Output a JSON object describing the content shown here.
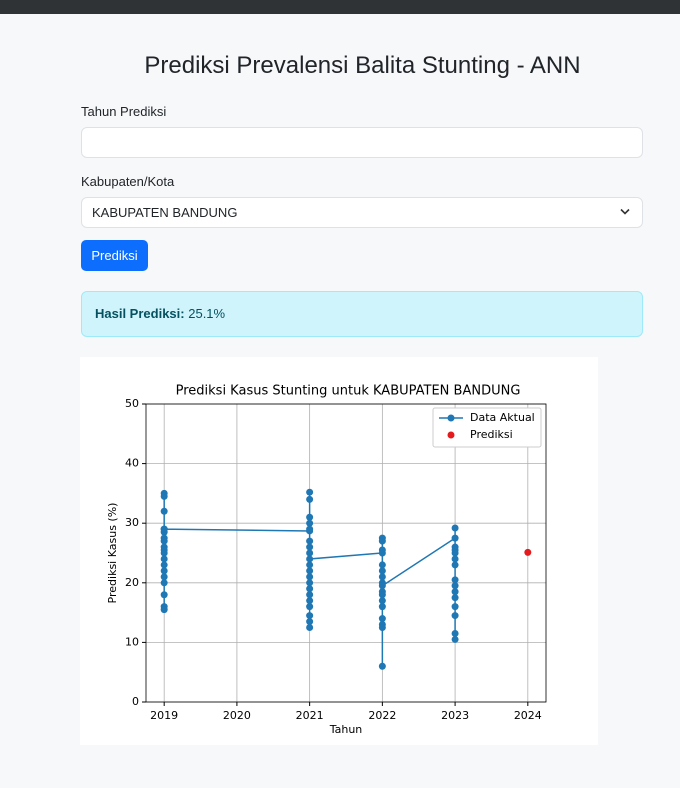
{
  "header": {
    "title": "Prediksi Prevalensi Balita Stunting - ANN"
  },
  "form": {
    "year_label": "Tahun Prediksi",
    "region_label": "Kabupaten/Kota",
    "region_value": "KABUPATEN BANDUNG",
    "button": "Prediksi"
  },
  "result": {
    "label": "Hasil Prediksi:",
    "value": "25.1%"
  },
  "chart_data": {
    "type": "line",
    "title": "Prediksi Kasus Stunting untuk KABUPATEN BANDUNG",
    "x_label": "Tahun",
    "y_label": "Prediksi Kasus (%)",
    "xlim": [
      2018.75,
      2024.25
    ],
    "xticks": [
      2019,
      2020,
      2021,
      2022,
      2023,
      2024
    ],
    "ylim": [
      0,
      50
    ],
    "yticks": [
      0,
      10,
      20,
      30,
      40,
      50
    ],
    "grid": true,
    "legend": "upper right",
    "series": [
      {
        "name": "Data Aktual",
        "type": "line",
        "color": "#1f77b4",
        "x": [
          2019,
          2019,
          2019,
          2019,
          2019,
          2019,
          2019,
          2019,
          2019,
          2019,
          2019,
          2019,
          2019,
          2019,
          2019,
          2019,
          2019,
          2019,
          2019,
          2021,
          2021,
          2021,
          2021,
          2021,
          2021,
          2021,
          2021,
          2021,
          2021,
          2021,
          2021,
          2021,
          2021,
          2021,
          2021,
          2021,
          2021,
          2021,
          2021,
          2021,
          2022,
          2022,
          2022,
          2022,
          2022,
          2022,
          2022,
          2022,
          2022,
          2022,
          2022,
          2022,
          2022,
          2022,
          2022,
          2022,
          2022,
          2023,
          2023,
          2023,
          2023,
          2023,
          2023,
          2023,
          2023,
          2023,
          2023,
          2023,
          2023,
          2023,
          2023,
          2023
        ],
        "values": [
          35,
          34.5,
          32,
          29,
          28.5,
          27.5,
          27,
          26,
          25.5,
          25,
          24,
          23,
          22,
          21,
          20,
          18,
          16,
          15.5,
          29,
          28.7,
          35.2,
          34,
          31,
          30,
          29,
          27,
          26,
          25,
          23,
          22,
          21,
          20,
          19,
          18,
          17,
          16,
          14.5,
          13.5,
          12.5,
          24,
          25,
          27.5,
          27,
          25.5,
          23,
          22,
          21,
          20,
          18.5,
          18,
          17,
          16,
          14,
          13,
          12.5,
          6,
          19.5,
          27.5,
          29.2,
          26,
          25.5,
          25,
          24,
          23,
          20.5,
          19.5,
          18.5,
          17.5,
          16,
          14.5,
          11.5,
          10.5
        ]
      },
      {
        "name": "Prediksi",
        "type": "scatter",
        "color": "#e41a1c",
        "x": [
          2024
        ],
        "values": [
          25.1
        ]
      }
    ]
  }
}
